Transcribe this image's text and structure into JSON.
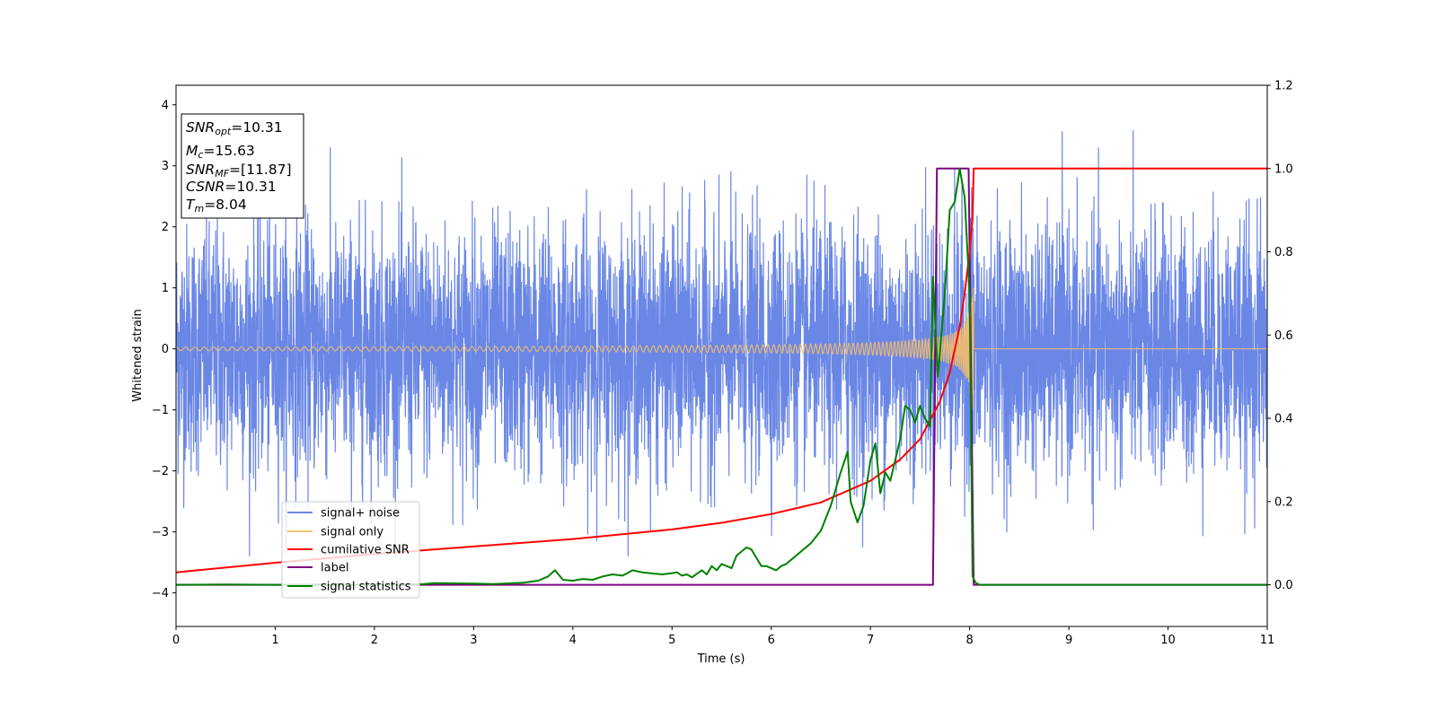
{
  "chart_data": {
    "type": "line",
    "xlabel": "Time (s)",
    "ylabel": "Whitened strain",
    "xlim": [
      0,
      11
    ],
    "ylim": [
      -4.55,
      4.32
    ],
    "y2lim": [
      -0.1,
      1.2
    ],
    "x_ticks": [
      "0",
      "1",
      "2",
      "3",
      "4",
      "5",
      "6",
      "7",
      "8",
      "9",
      "10",
      "11"
    ],
    "y_ticks": [
      "4",
      "3",
      "2",
      "1",
      "0",
      "−1",
      "−2",
      "−3",
      "−4"
    ],
    "y_tick_values": [
      4,
      3,
      2,
      1,
      0,
      -1,
      -2,
      -3,
      -4
    ],
    "y2_ticks": [
      "1.2",
      "1.0",
      "0.8",
      "0.6",
      "0.4",
      "0.2",
      "0.0"
    ],
    "y2_tick_values": [
      1.2,
      1.0,
      0.8,
      0.6,
      0.4,
      0.2,
      0.0
    ],
    "grid": false,
    "legend_position": "lower-left",
    "annotation": [
      {
        "sym": "SNR",
        "sub": "opt",
        "value": "=10.31"
      },
      {
        "sym": "M",
        "sub": "c",
        "value": "=15.63"
      },
      {
        "sym": "SNR",
        "sub": "MF",
        "value": "=[11.87]"
      },
      {
        "sym": "CSNR",
        "sub": "",
        "value": "=10.31"
      },
      {
        "sym": "T",
        "sub": "m",
        "value": "=8.04"
      }
    ],
    "series": [
      {
        "name": "signal+ noise",
        "color": "#6a87e6",
        "axis": "left",
        "noise_std": 1.0,
        "noise_extremes": {
          "max": 3.95,
          "min": -3.4
        }
      },
      {
        "name": "signal only",
        "color": "#f5bd6a",
        "axis": "left",
        "model": "chirp",
        "start_amplitude": 0.03,
        "peak_amplitude": 1.0,
        "merger_time": 8.04,
        "cycles_visible": 140
      },
      {
        "name": "cumilative SNR",
        "color": "#ff0000",
        "axis": "right",
        "x": [
          0,
          1,
          2,
          3,
          4,
          5,
          5.5,
          6,
          6.5,
          7,
          7.3,
          7.5,
          7.7,
          7.8,
          7.9,
          7.95,
          8.0,
          8.03,
          8.04,
          11
        ],
        "values": [
          0.03,
          0.053,
          0.074,
          0.092,
          0.11,
          0.133,
          0.149,
          0.17,
          0.198,
          0.25,
          0.301,
          0.35,
          0.44,
          0.51,
          0.62,
          0.7,
          0.8,
          0.88,
          1.0,
          1.0
        ]
      },
      {
        "name": "label",
        "color": "#800080",
        "axis": "right",
        "x": [
          0,
          7.63,
          7.67,
          7.99,
          8.04,
          11
        ],
        "values": [
          0,
          0,
          1,
          1,
          0,
          0
        ]
      },
      {
        "name": "signal statistics",
        "color": "#008000",
        "axis": "right",
        "x": [
          0,
          0.5,
          1,
          1.5,
          2,
          2.5,
          2.6,
          3,
          3.2,
          3.5,
          3.65,
          3.75,
          3.82,
          3.9,
          4.0,
          4.1,
          4.2,
          4.3,
          4.4,
          4.5,
          4.55,
          4.6,
          4.7,
          4.9,
          5.0,
          5.05,
          5.1,
          5.15,
          5.2,
          5.3,
          5.35,
          5.4,
          5.45,
          5.5,
          5.55,
          5.6,
          5.65,
          5.7,
          5.75,
          5.8,
          5.85,
          5.9,
          5.95,
          6.0,
          6.05,
          6.1,
          6.15,
          6.2,
          6.3,
          6.4,
          6.5,
          6.6,
          6.7,
          6.77,
          6.8,
          6.87,
          6.93,
          7.0,
          7.05,
          7.1,
          7.15,
          7.2,
          7.3,
          7.35,
          7.4,
          7.45,
          7.5,
          7.55,
          7.6,
          7.63,
          7.68,
          7.75,
          7.8,
          7.85,
          7.9,
          7.95,
          8.0,
          8.03,
          8.06,
          8.1,
          8.2,
          9,
          10,
          11
        ],
        "values": [
          0,
          0.001,
          0.0,
          0.001,
          0.0,
          0.002,
          0.004,
          0.003,
          0.002,
          0.005,
          0.01,
          0.02,
          0.035,
          0.012,
          0.01,
          0.014,
          0.012,
          0.02,
          0.025,
          0.022,
          0.028,
          0.035,
          0.03,
          0.025,
          0.028,
          0.03,
          0.022,
          0.025,
          0.018,
          0.035,
          0.025,
          0.045,
          0.035,
          0.05,
          0.045,
          0.04,
          0.07,
          0.08,
          0.09,
          0.085,
          0.065,
          0.045,
          0.045,
          0.04,
          0.035,
          0.045,
          0.05,
          0.06,
          0.08,
          0.1,
          0.13,
          0.19,
          0.27,
          0.32,
          0.2,
          0.15,
          0.19,
          0.3,
          0.34,
          0.22,
          0.27,
          0.25,
          0.35,
          0.43,
          0.42,
          0.39,
          0.43,
          0.4,
          0.38,
          0.74,
          0.5,
          0.7,
          0.9,
          0.92,
          1.0,
          0.93,
          0.7,
          0.02,
          0.005,
          0.0,
          0.0,
          0.0,
          0.0,
          0.0
        ]
      }
    ]
  }
}
